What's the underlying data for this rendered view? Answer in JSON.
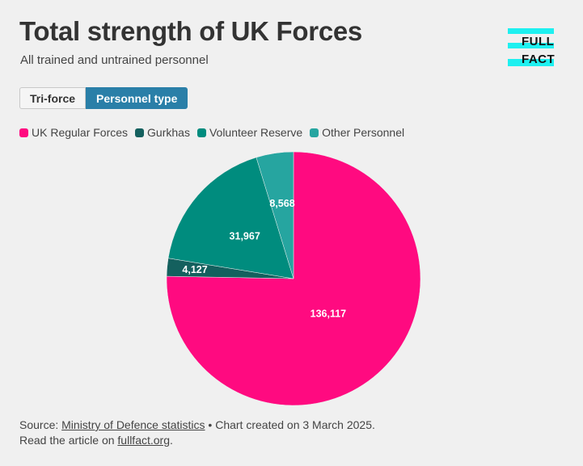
{
  "header": {
    "title": "Total strength of UK Forces",
    "subtitle": "All trained and untrained personnel"
  },
  "logo": {
    "line1": "FULL",
    "line2": "FACT",
    "color": "#1ef0f0"
  },
  "tabs": [
    {
      "label": "Tri-force",
      "active": false
    },
    {
      "label": "Personnel type",
      "active": true
    }
  ],
  "chart_data": {
    "type": "pie",
    "title": "Total strength of UK Forces",
    "subtitle": "All trained and untrained personnel",
    "legend_position": "top-left",
    "slices": [
      {
        "name": "UK Regular Forces",
        "value": 136117,
        "label": "136,117",
        "color": "#ff0a80"
      },
      {
        "name": "Gurkhas",
        "value": 4127,
        "label": "4,127",
        "color": "#14605e"
      },
      {
        "name": "Volunteer Reserve",
        "value": 31967,
        "label": "31,967",
        "color": "#008c7e"
      },
      {
        "name": "Other Personnel",
        "value": 8568,
        "label": "8,568",
        "color": "#26a5a0"
      }
    ]
  },
  "footer": {
    "source_prefix": "Source: ",
    "source_link": "Ministry of Defence statistics",
    "source_suffix": " • Chart created on 3 March 2025.",
    "article_prefix": "Read the article on ",
    "article_link": "fullfact.org",
    "article_suffix": "."
  }
}
